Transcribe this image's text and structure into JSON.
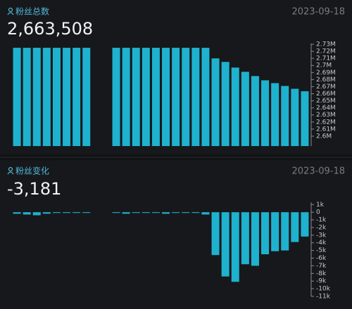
{
  "chart_data": [
    {
      "type": "bar",
      "title": "粉丝总数",
      "date": "2023-09-18",
      "headline": "2,663,508",
      "color": "#1eb2cf",
      "values": [
        2725000,
        2725000,
        2725000,
        2725000,
        2725000,
        2725000,
        2725000,
        2725000,
        null,
        null,
        2725000,
        2725000,
        2725000,
        2725000,
        2725000,
        2725000,
        2725000,
        2725000,
        2725000,
        2725000,
        2710000,
        2705000,
        2697000,
        2691000,
        2685000,
        2679000,
        2675000,
        2671000,
        2667000,
        2663508
      ],
      "ylim": [
        2586000,
        2731000
      ],
      "yticks": [
        {
          "value": 2600000,
          "label": "2.6M"
        },
        {
          "value": 2610000,
          "label": "2.61M"
        },
        {
          "value": 2620000,
          "label": "2.62M"
        },
        {
          "value": 2630000,
          "label": "2.63M"
        },
        {
          "value": 2640000,
          "label": "2.64M"
        },
        {
          "value": 2650000,
          "label": "2.65M"
        },
        {
          "value": 2660000,
          "label": "2.66M"
        },
        {
          "value": 2670000,
          "label": "2.67M"
        },
        {
          "value": 2680000,
          "label": "2.68M"
        },
        {
          "value": 2690000,
          "label": "2.69M"
        },
        {
          "value": 2700000,
          "label": "2.7M"
        },
        {
          "value": 2710000,
          "label": "2.71M"
        },
        {
          "value": 2720000,
          "label": "2.72M"
        },
        {
          "value": 2730000,
          "label": "2.73M"
        }
      ]
    },
    {
      "type": "bar",
      "title": "粉丝变化",
      "date": "2023-09-18",
      "headline": "-3,181",
      "color": "#1eb2cf",
      "values": [
        -200,
        -300,
        -400,
        -200,
        -100,
        -100,
        -100,
        -100,
        null,
        null,
        -100,
        -200,
        -100,
        -100,
        -100,
        -200,
        -100,
        -100,
        -100,
        -300,
        -5600,
        -8400,
        -9100,
        -6800,
        -7000,
        -5500,
        -5100,
        -5000,
        -3900,
        -3181
      ],
      "ylim": [
        -11000,
        1300
      ],
      "yticks": [
        {
          "value": 1000,
          "label": "1k"
        },
        0,
        {
          "value": -1000,
          "label": "-1k"
        },
        {
          "value": -2000,
          "label": "-2k"
        },
        {
          "value": -3000,
          "label": "-3k"
        },
        {
          "value": -4000,
          "label": "-4k"
        },
        {
          "value": -5000,
          "label": "-5k"
        },
        {
          "value": -6000,
          "label": "-6k"
        },
        {
          "value": -7000,
          "label": "-7k"
        },
        {
          "value": -8000,
          "label": "-8k"
        },
        {
          "value": -9000,
          "label": "-9k"
        },
        {
          "value": -10000,
          "label": "-10k"
        },
        {
          "value": -11000,
          "label": "-11k"
        }
      ]
    }
  ]
}
